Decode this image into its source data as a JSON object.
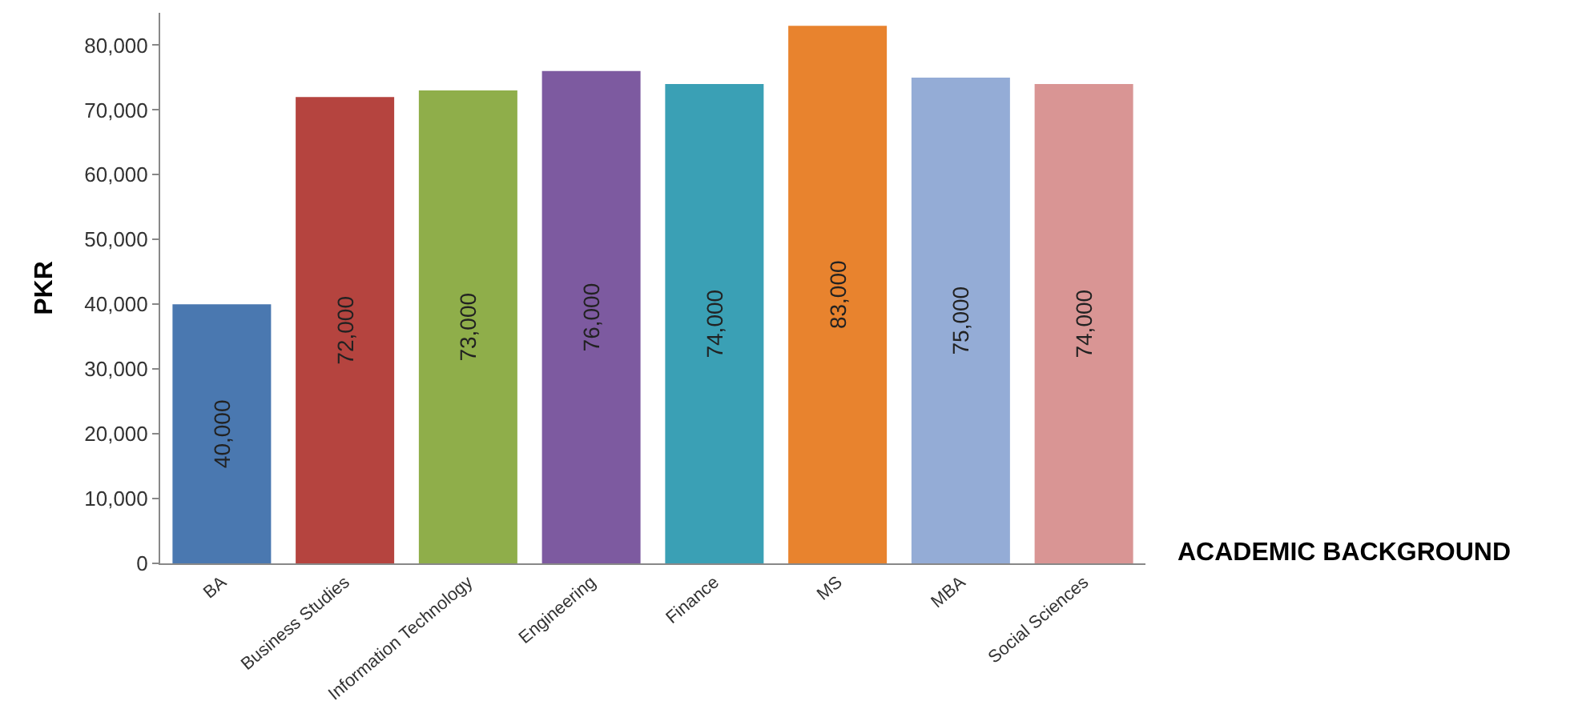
{
  "chart_data": {
    "type": "bar",
    "xlabel": "ACADEMIC BACKGROUND",
    "ylabel": "PKR",
    "categories": [
      "BA",
      "Business Studies",
      "Information Technology",
      "Engineering",
      "Finance",
      "MS",
      "MBA",
      "Social Sciences"
    ],
    "values": [
      40000,
      72000,
      73000,
      76000,
      74000,
      83000,
      75000,
      74000
    ],
    "colors": [
      "#4a78b0",
      "#b5443f",
      "#8fae4a",
      "#7d5aa0",
      "#3aa0b5",
      "#e8832e",
      "#94acd6",
      "#d99594"
    ],
    "value_labels": [
      "40,000",
      "72,000",
      "73,000",
      "76,000",
      "74,000",
      "83,000",
      "75,000",
      "74,000"
    ],
    "ylim": [
      0,
      85000
    ],
    "yticks": [
      {
        "value": 0,
        "label": "0"
      },
      {
        "value": 10000,
        "label": "10,000"
      },
      {
        "value": 20000,
        "label": "20,000"
      },
      {
        "value": 30000,
        "label": "30,000"
      },
      {
        "value": 40000,
        "label": "40,000"
      },
      {
        "value": 50000,
        "label": "50,000"
      },
      {
        "value": 60000,
        "label": "60,000"
      },
      {
        "value": 70000,
        "label": "70,000"
      },
      {
        "value": 80000,
        "label": "80,000"
      }
    ],
    "legend": false
  }
}
